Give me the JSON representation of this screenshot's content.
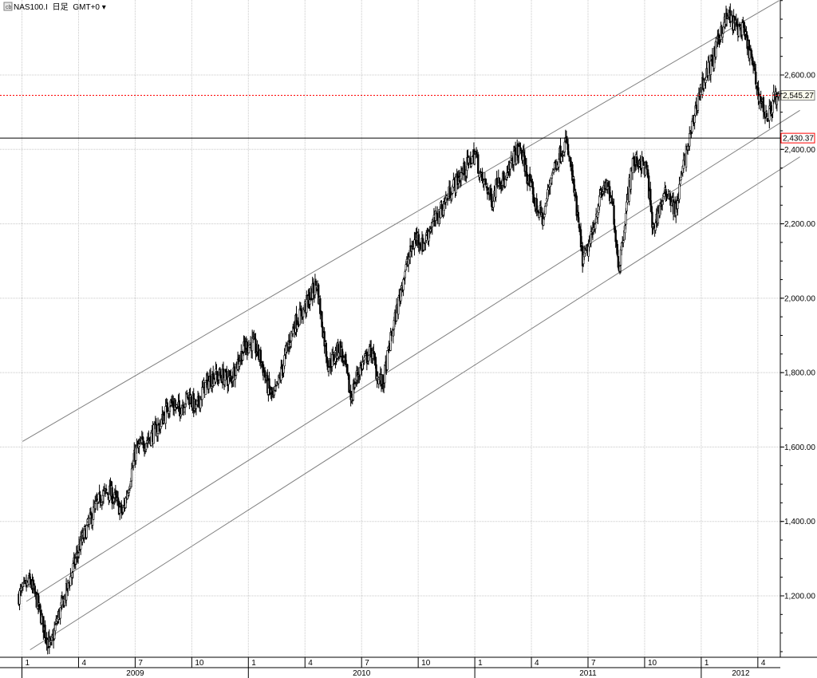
{
  "header": {
    "symbol": "NAS100.I",
    "timeframe": "日足",
    "timezone": "GMT+0",
    "menu_glyph": "▾",
    "symbol_icon": "chart-symbol-icon"
  },
  "colors": {
    "background": "#ffffff",
    "grid": "#c8c8c8",
    "candle": "#000000",
    "channel": "#808080",
    "support_line": "#000000",
    "resistance_line": "#ff0000"
  },
  "chart_data": {
    "type": "candlestick",
    "title": "",
    "xlabel": "",
    "ylabel": "",
    "ylim": [
      1040,
      2800
    ],
    "y_axis_position": "right",
    "y_ticks": [
      "1,200.00",
      "1,400.00",
      "1,600.00",
      "1,800.00",
      "2,000.00",
      "2,200.00",
      "2,400.00",
      "2,600.00"
    ],
    "y_tick_values": [
      1200,
      1400,
      1600,
      1800,
      2000,
      2200,
      2400,
      2600
    ],
    "x_month_labels": [
      "1",
      "4",
      "7",
      "10",
      "1",
      "4",
      "7",
      "10",
      "1",
      "4",
      "7",
      "10",
      "1",
      "4"
    ],
    "x_year_labels": [
      "2009",
      "2010",
      "2011",
      "2012"
    ],
    "grid": true,
    "horizontal_levels": [
      {
        "label": "2,545.27",
        "value": 2545.27,
        "style": "dotted",
        "color": "#ff0000"
      },
      {
        "label": "2,430.37",
        "value": 2430.37,
        "style": "solid",
        "color": "#000000"
      }
    ],
    "channel_lines": [
      {
        "name": "",
        "start": {
          "month_index": 0.2,
          "price": 1615
        },
        "end": {
          "month_index": 40.3,
          "price": 2800
        }
      },
      {
        "name": "",
        "start": {
          "month_index": 0.4,
          "price": 1185
        },
        "end": {
          "month_index": 41.4,
          "price": 2505
        }
      },
      {
        "name": "",
        "start": {
          "month_index": 0.6,
          "price": 1055
        },
        "end": {
          "month_index": 41.4,
          "price": 2380
        }
      }
    ],
    "close_path": [
      [
        0,
        1200
      ],
      [
        0.6,
        1240
      ],
      [
        1.0,
        1180
      ],
      [
        1.4,
        1100
      ],
      [
        1.7,
        1060
      ],
      [
        2.0,
        1130
      ],
      [
        2.4,
        1190
      ],
      [
        2.8,
        1260
      ],
      [
        3.2,
        1330
      ],
      [
        3.6,
        1380
      ],
      [
        4.0,
        1430
      ],
      [
        4.4,
        1470
      ],
      [
        4.8,
        1480
      ],
      [
        5.1,
        1460
      ],
      [
        5.5,
        1420
      ],
      [
        5.8,
        1490
      ],
      [
        6.2,
        1590
      ],
      [
        6.6,
        1610
      ],
      [
        7.0,
        1630
      ],
      [
        7.5,
        1660
      ],
      [
        8.0,
        1720
      ],
      [
        8.5,
        1700
      ],
      [
        9.0,
        1740
      ],
      [
        9.4,
        1700
      ],
      [
        9.8,
        1760
      ],
      [
        10.3,
        1790
      ],
      [
        10.8,
        1790
      ],
      [
        11.2,
        1780
      ],
      [
        11.7,
        1840
      ],
      [
        12.0,
        1870
      ],
      [
        12.4,
        1880
      ],
      [
        12.8,
        1840
      ],
      [
        13.2,
        1760
      ],
      [
        13.5,
        1730
      ],
      [
        13.8,
        1780
      ],
      [
        14.2,
        1860
      ],
      [
        14.6,
        1930
      ],
      [
        15.0,
        1960
      ],
      [
        15.4,
        2000
      ],
      [
        15.8,
        2040
      ],
      [
        16.1,
        1920
      ],
      [
        16.4,
        1820
      ],
      [
        16.7,
        1840
      ],
      [
        17.0,
        1870
      ],
      [
        17.3,
        1820
      ],
      [
        17.6,
        1730
      ],
      [
        17.9,
        1790
      ],
      [
        18.3,
        1830
      ],
      [
        18.7,
        1860
      ],
      [
        19.0,
        1790
      ],
      [
        19.3,
        1770
      ],
      [
        19.6,
        1860
      ],
      [
        20.0,
        1960
      ],
      [
        20.4,
        2060
      ],
      [
        20.8,
        2130
      ],
      [
        21.1,
        2170
      ],
      [
        21.4,
        2140
      ],
      [
        21.8,
        2190
      ],
      [
        22.2,
        2220
      ],
      [
        22.6,
        2260
      ],
      [
        23.0,
        2300
      ],
      [
        23.4,
        2330
      ],
      [
        23.8,
        2360
      ],
      [
        24.2,
        2390
      ],
      [
        24.5,
        2320
      ],
      [
        24.8,
        2300
      ],
      [
        25.1,
        2260
      ],
      [
        25.4,
        2330
      ],
      [
        25.8,
        2310
      ],
      [
        26.2,
        2380
      ],
      [
        26.6,
        2400
      ],
      [
        27.0,
        2320
      ],
      [
        27.4,
        2250
      ],
      [
        27.8,
        2210
      ],
      [
        28.2,
        2330
      ],
      [
        28.6,
        2380
      ],
      [
        29.0,
        2420
      ],
      [
        29.3,
        2340
      ],
      [
        29.6,
        2220
      ],
      [
        29.9,
        2100
      ],
      [
        30.3,
        2150
      ],
      [
        30.7,
        2250
      ],
      [
        31.1,
        2310
      ],
      [
        31.5,
        2240
      ],
      [
        31.8,
        2080
      ],
      [
        32.1,
        2200
      ],
      [
        32.5,
        2360
      ],
      [
        32.9,
        2370
      ],
      [
        33.3,
        2340
      ],
      [
        33.6,
        2180
      ],
      [
        34.0,
        2250
      ],
      [
        34.4,
        2290
      ],
      [
        34.8,
        2230
      ],
      [
        35.2,
        2350
      ],
      [
        35.6,
        2440
      ],
      [
        36.0,
        2540
      ],
      [
        36.4,
        2600
      ],
      [
        36.8,
        2640
      ],
      [
        37.2,
        2720
      ],
      [
        37.6,
        2760
      ],
      [
        38.0,
        2730
      ],
      [
        38.4,
        2720
      ],
      [
        38.8,
        2650
      ],
      [
        39.1,
        2570
      ],
      [
        39.4,
        2520
      ],
      [
        39.7,
        2480
      ],
      [
        40.0,
        2540
      ],
      [
        40.3,
        2530
      ]
    ]
  }
}
